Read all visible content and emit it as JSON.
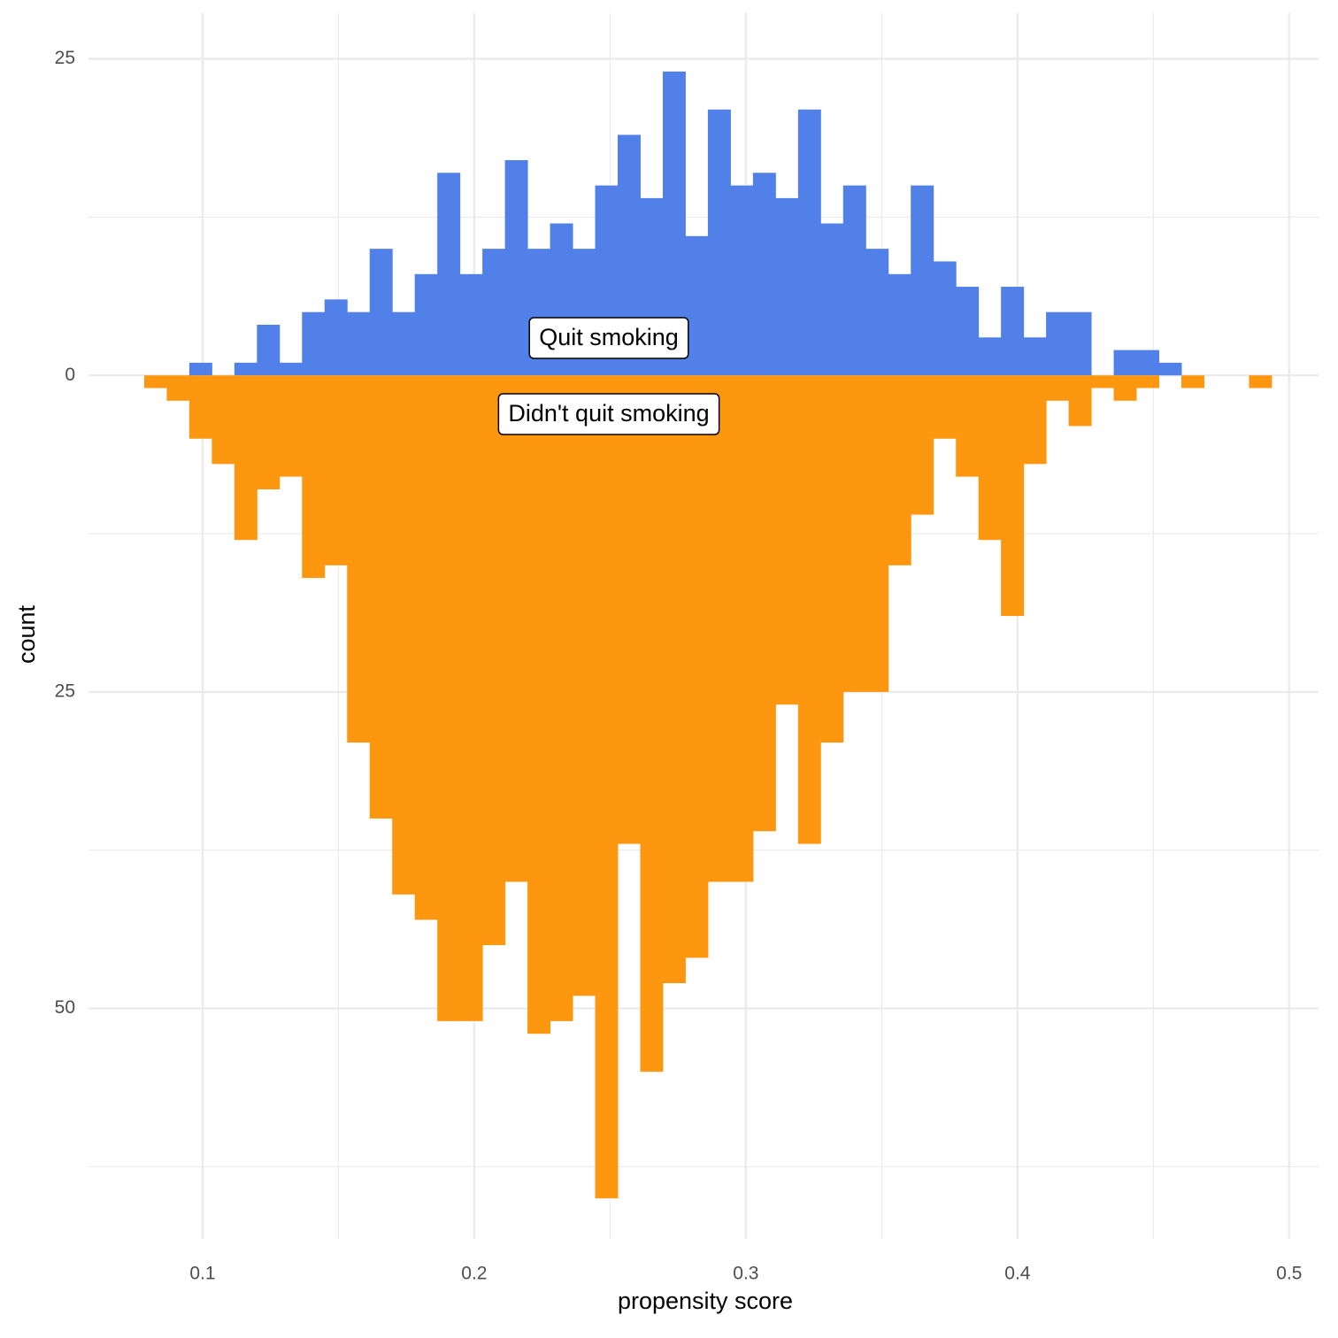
{
  "chart_data": {
    "type": "mirrored_histogram",
    "x_label": "propensity score",
    "y_label": "count",
    "bins": [
      0.0785,
      0.0868,
      0.0951,
      0.1034,
      0.1117,
      0.12,
      0.1283,
      0.1366,
      0.1449,
      0.1532,
      0.1615,
      0.1698,
      0.1781,
      0.1864,
      0.1947,
      0.203,
      0.2113,
      0.2196,
      0.2279,
      0.2362,
      0.2445,
      0.2528,
      0.2611,
      0.2694,
      0.2777,
      0.286,
      0.2943,
      0.3026,
      0.3109,
      0.3192,
      0.3275,
      0.3358,
      0.3441,
      0.3524,
      0.3607,
      0.369,
      0.3773,
      0.3856,
      0.3939,
      0.4022,
      0.4105,
      0.4188,
      0.4271,
      0.4354,
      0.4437,
      0.452,
      0.4603,
      0.4686,
      0.4769,
      0.4852,
      0.4935
    ],
    "series": [
      {
        "color": "#5280E9",
        "values": [
          0,
          0,
          1,
          0,
          1,
          4,
          1,
          5,
          6,
          5,
          10,
          5,
          8,
          16,
          8,
          10,
          17,
          10,
          12,
          10,
          15,
          19,
          14,
          24,
          11,
          21,
          15,
          16,
          14,
          21,
          12,
          15,
          10,
          8,
          15,
          9,
          7,
          3,
          7,
          3,
          5,
          5,
          0,
          2,
          2,
          1,
          0,
          0,
          0,
          0
        ]
      },
      {
        "color": "#FE9710",
        "values": [
          -1,
          -2,
          -5,
          -7,
          -13,
          -9,
          -8,
          -16,
          -15,
          -29,
          -35,
          -41,
          -43,
          -51,
          -51,
          -45,
          -40,
          -52,
          -51,
          -49,
          -65,
          -37,
          -55,
          -48,
          -46,
          -40,
          -40,
          -36,
          -26,
          -37,
          -29,
          -25,
          -25,
          -15,
          -11,
          -5,
          -8,
          -13,
          -19,
          -7,
          -2,
          -4,
          -1,
          -2,
          -1,
          0,
          -1,
          0,
          0,
          -1
        ]
      }
    ],
    "annotations": [
      "Quit smoking",
      "Didn't quit smoking"
    ],
    "xlim": [
      0.058,
      0.5108
    ],
    "ylim": [
      -68.2,
      28.6
    ],
    "xticks": [
      0.1,
      0.2,
      0.3,
      0.4,
      0.5
    ],
    "yticks": [
      {
        "value": -50,
        "label": "50"
      },
      {
        "value": -25,
        "label": "25"
      },
      0,
      25
    ],
    "x_minor_grid": [
      0.15,
      0.25,
      0.35,
      0.45
    ],
    "y_minor_grid": [
      -62.5,
      -37.5,
      -12.5,
      12.5
    ],
    "grid": true
  }
}
